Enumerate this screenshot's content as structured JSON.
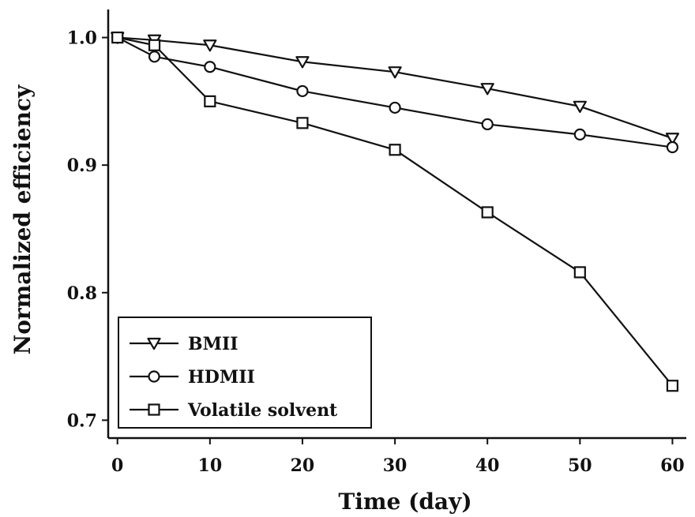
{
  "chart_data": {
    "type": "line",
    "xlabel": "Time (day)",
    "ylabel": "Normalized efficiency",
    "xlim": [
      -1,
      61.5
    ],
    "ylim": [
      0.686,
      1.022
    ],
    "xticks": [
      0,
      10,
      20,
      30,
      40,
      50,
      60
    ],
    "xtick_labels": [
      "0",
      "10",
      "20",
      "30",
      "40",
      "50",
      "60"
    ],
    "yticks": [
      0.7,
      0.8,
      0.9,
      1.0
    ],
    "ytick_labels": [
      "0.7",
      "0.8",
      "0.9",
      "1.0"
    ],
    "grid": false,
    "legend_position": "bottom-left",
    "series": [
      {
        "name": "BMII",
        "marker": "triangle-down",
        "x": [
          0,
          4,
          10,
          20,
          30,
          40,
          50,
          60
        ],
        "y": [
          1.0,
          0.998,
          0.994,
          0.981,
          0.973,
          0.96,
          0.946,
          0.921
        ]
      },
      {
        "name": "HDMII",
        "marker": "circle",
        "x": [
          0,
          4,
          10,
          20,
          30,
          40,
          50,
          60
        ],
        "y": [
          1.0,
          0.985,
          0.977,
          0.958,
          0.945,
          0.932,
          0.924,
          0.914
        ]
      },
      {
        "name": "Volatile solvent",
        "marker": "square",
        "x": [
          0,
          4,
          10,
          20,
          30,
          40,
          50,
          60
        ],
        "y": [
          1.0,
          0.994,
          0.95,
          0.933,
          0.912,
          0.863,
          0.816,
          0.727
        ]
      }
    ]
  }
}
